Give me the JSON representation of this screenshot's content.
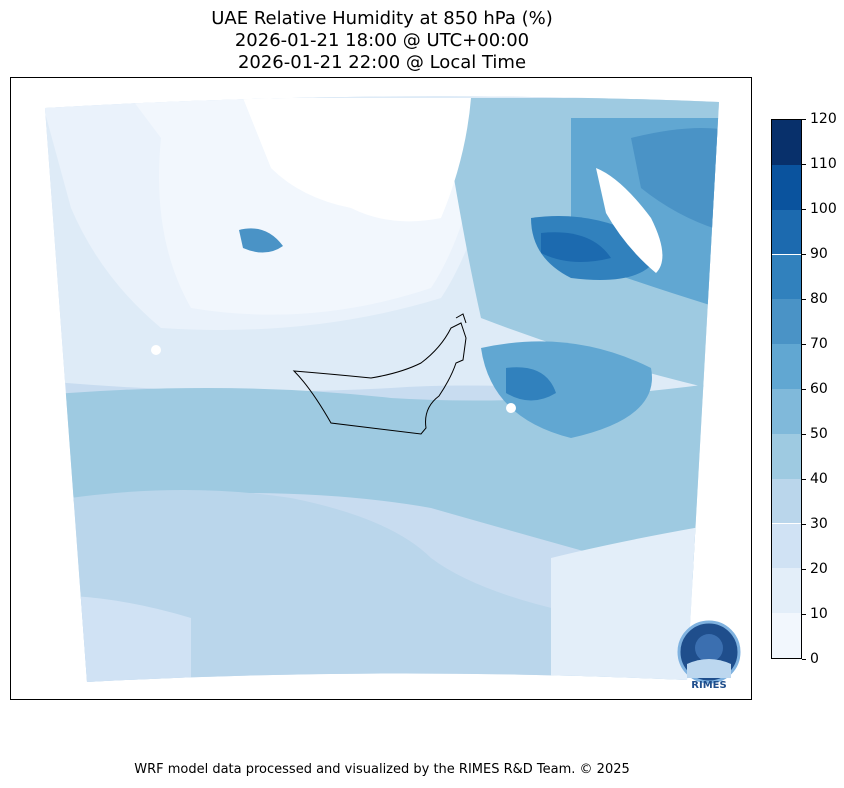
{
  "title": {
    "line1": "UAE Relative Humidity at 850 hPa (%)",
    "line2": "2026-01-21 18:00 @ UTC+00:00",
    "line3": "2026-01-21 22:00 @ Local Time"
  },
  "colorbar": {
    "ticks": [
      "0",
      "10",
      "20",
      "30",
      "40",
      "50",
      "60",
      "70",
      "80",
      "90",
      "100",
      "110",
      "120"
    ],
    "colors": [
      "#f2f7fd",
      "#e3eef9",
      "#d0e2f4",
      "#bad6eb",
      "#9ecae1",
      "#80b9da",
      "#61a7d2",
      "#4a93c6",
      "#3181bd",
      "#1c6aaf",
      "#0a539e",
      "#08306b"
    ]
  },
  "logo": {
    "text": "RIMES"
  },
  "footer": "WRF model data processed and visualized by the RIMES R&D Team. © 2025"
}
